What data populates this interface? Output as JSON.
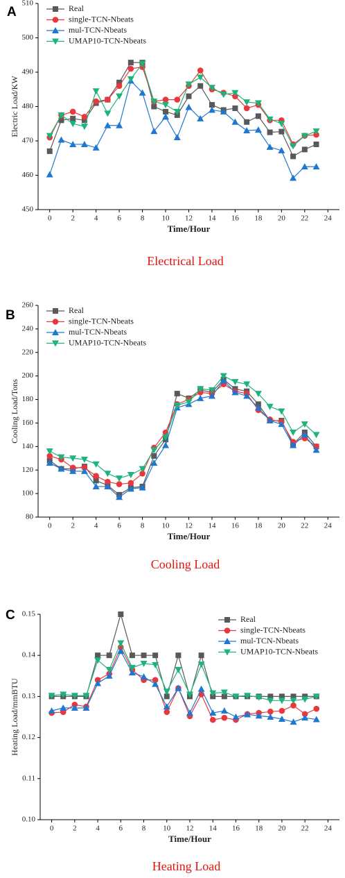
{
  "chart_data": [
    {
      "type": "line",
      "panel_label": "A",
      "x_label": "Time/Hour",
      "y_label": "Electric Load/KW",
      "caption": "Electrical Load",
      "legend": "upper left",
      "x": [
        0,
        1,
        2,
        3,
        4,
        5,
        6,
        7,
        8,
        9,
        10,
        11,
        12,
        13,
        14,
        15,
        16,
        17,
        18,
        19,
        20,
        21,
        22,
        23
      ],
      "xlim": [
        -1,
        25
      ],
      "xticks": [
        0,
        2,
        4,
        6,
        8,
        10,
        12,
        14,
        16,
        18,
        20,
        22,
        24
      ],
      "ylim": [
        450,
        510
      ],
      "yticks": [
        450,
        460,
        470,
        480,
        490,
        500,
        510
      ],
      "series": [
        {
          "name": "Real",
          "color": "#595959",
          "marker": "square",
          "values": [
            467,
            476,
            476.5,
            476,
            481,
            482,
            487,
            492.8,
            492.8,
            480,
            478.5,
            477.5,
            483,
            486,
            480.5,
            479,
            479.5,
            475.5,
            477.2,
            472.5,
            472.7,
            465.5,
            467.5,
            469
          ]
        },
        {
          "name": "single-TCN-Nbeats",
          "color": "#e8383d",
          "marker": "circle",
          "values": [
            471,
            477.5,
            478.5,
            477,
            481.5,
            482,
            486,
            491,
            491.5,
            481.5,
            482,
            482,
            486,
            490.5,
            485,
            484,
            483,
            479.5,
            480.5,
            476,
            476,
            469,
            471.5,
            471.8
          ]
        },
        {
          "name": "mul-TCN-Nbeats",
          "color": "#1f77d0",
          "marker": "triangle",
          "values": [
            460.2,
            470.3,
            469,
            469,
            468,
            474.5,
            474.5,
            487.5,
            484,
            472.8,
            477,
            471,
            479.8,
            476.5,
            479,
            478.5,
            475.5,
            473,
            473.2,
            468.2,
            467.2,
            459.2,
            462.5,
            462.5
          ]
        },
        {
          "name": "UMAP10-TCN-Nbeats",
          "color": "#1db37a",
          "marker": "down-triangle",
          "values": [
            471.5,
            477.5,
            475,
            474.2,
            484.5,
            478,
            483,
            488,
            492.5,
            481.5,
            480.5,
            478.5,
            486.5,
            488.5,
            485.5,
            483.5,
            484,
            481.3,
            481,
            476.3,
            475,
            468.5,
            471.5,
            472.8
          ]
        }
      ]
    },
    {
      "type": "line",
      "panel_label": "B",
      "x_label": "Time/Hour",
      "y_label": "Cooling Load/Tons",
      "caption": "Cooling Load",
      "legend": "upper left",
      "x": [
        0,
        1,
        2,
        3,
        4,
        5,
        6,
        7,
        8,
        9,
        10,
        11,
        12,
        13,
        14,
        15,
        16,
        17,
        18,
        19,
        20,
        21,
        22,
        23
      ],
      "xlim": [
        -1,
        25
      ],
      "xticks": [
        0,
        2,
        4,
        6,
        8,
        10,
        12,
        14,
        16,
        18,
        20,
        22,
        24
      ],
      "ylim": [
        80,
        260
      ],
      "yticks": [
        80,
        100,
        120,
        140,
        160,
        180,
        200,
        220,
        240,
        260
      ],
      "series": [
        {
          "name": "Real",
          "color": "#595959",
          "marker": "square",
          "values": [
            128,
            121,
            121,
            123,
            111,
            107,
            99,
            105,
            106,
            132,
            146,
            185,
            181,
            188,
            186,
            197,
            189,
            187,
            176,
            162,
            162,
            142,
            152,
            140
          ]
        },
        {
          "name": "single-TCN-Nbeats",
          "color": "#e8383d",
          "marker": "circle",
          "values": [
            132,
            129,
            122,
            122,
            115,
            110,
            108,
            109,
            117,
            139,
            152,
            176,
            180,
            186,
            185,
            193,
            187,
            185,
            171,
            163,
            161,
            144,
            147,
            140
          ]
        },
        {
          "name": "mul-TCN-Nbeats",
          "color": "#1f77d0",
          "marker": "triangle",
          "values": [
            126,
            121,
            119,
            119,
            106,
            106,
            97,
            104,
            105,
            126,
            141,
            173,
            176,
            181,
            183,
            196,
            186,
            183,
            173,
            162,
            159,
            141,
            150,
            137
          ]
        },
        {
          "name": "UMAP10-TCN-Nbeats",
          "color": "#1db37a",
          "marker": "down-triangle",
          "values": [
            136,
            131,
            130,
            129,
            125,
            117,
            113,
            116,
            121,
            137,
            148,
            175,
            178,
            189,
            188,
            200,
            195,
            193,
            185,
            174,
            170,
            152,
            159,
            150
          ]
        }
      ]
    },
    {
      "type": "line",
      "panel_label": "C",
      "x_label": "Time/Hour",
      "y_label": "Heating Load/mmBTU",
      "caption": "Heating Load",
      "legend": "upper right",
      "x": [
        0,
        1,
        2,
        3,
        4,
        5,
        6,
        7,
        8,
        9,
        10,
        11,
        12,
        13,
        14,
        15,
        16,
        17,
        18,
        19,
        20,
        21,
        22,
        23
      ],
      "xlim": [
        -1,
        25
      ],
      "xticks": [
        0,
        2,
        4,
        6,
        8,
        10,
        12,
        14,
        16,
        18,
        20,
        22,
        24
      ],
      "ylim": [
        0.1,
        0.15
      ],
      "yticks": [
        {
          "value": 0.1,
          "label": "0.10"
        },
        0.11,
        0.12,
        0.13,
        0.14,
        0.15
      ],
      "series": [
        {
          "name": "Real",
          "color": "#595959",
          "marker": "square",
          "values": [
            0.13,
            0.13,
            0.13,
            0.13,
            0.14,
            0.14,
            0.15,
            0.14,
            0.14,
            0.14,
            0.13,
            0.14,
            0.13,
            0.14,
            0.13,
            0.13,
            0.13,
            0.13,
            0.13,
            0.13,
            0.13,
            0.13,
            0.13,
            0.13
          ]
        },
        {
          "name": "single-TCN-Nbeats",
          "color": "#e8383d",
          "marker": "circle",
          "values": [
            0.126,
            0.1262,
            0.128,
            0.1275,
            0.134,
            0.1355,
            0.142,
            0.1365,
            0.134,
            0.134,
            0.1262,
            0.132,
            0.1252,
            0.1305,
            0.1243,
            0.1248,
            0.1243,
            0.1257,
            0.126,
            0.1263,
            0.1265,
            0.1278,
            0.1257,
            0.127
          ]
        },
        {
          "name": "mul-TCN-Nbeats",
          "color": "#1f77d0",
          "marker": "triangle",
          "values": [
            0.1265,
            0.1272,
            0.1272,
            0.1272,
            0.1332,
            0.135,
            0.141,
            0.1358,
            0.1348,
            0.133,
            0.1275,
            0.132,
            0.126,
            0.1318,
            0.126,
            0.1265,
            0.125,
            0.1256,
            0.1253,
            0.125,
            0.1245,
            0.1238,
            0.1248,
            0.1244
          ]
        },
        {
          "name": "UMAP10-TCN-Nbeats",
          "color": "#1db37a",
          "marker": "down-triangle",
          "values": [
            0.1302,
            0.1305,
            0.1302,
            0.1302,
            0.1388,
            0.1365,
            0.143,
            0.137,
            0.138,
            0.1377,
            0.1312,
            0.1365,
            0.1305,
            0.1378,
            0.1308,
            0.131,
            0.13,
            0.1302,
            0.1298,
            0.129,
            0.129,
            0.129,
            0.1293,
            0.13
          ]
        }
      ]
    }
  ]
}
